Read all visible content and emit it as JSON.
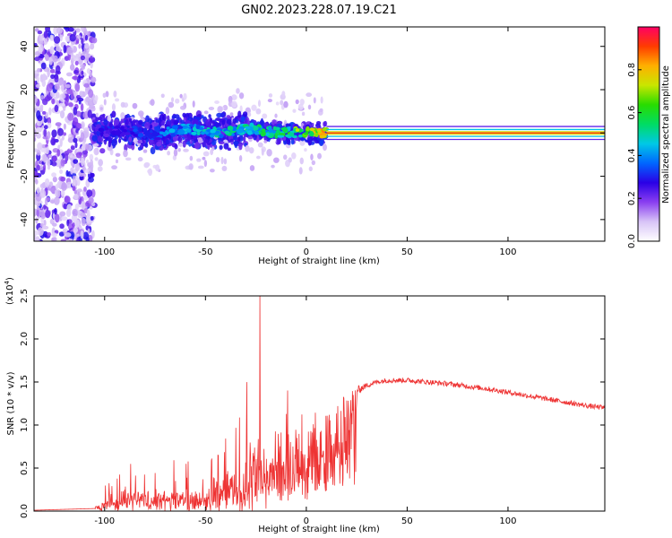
{
  "title": "GN02.2023.228.07.19.C21",
  "chart_data": [
    {
      "type": "heatmap",
      "xlabel": "Height of straight line (km)",
      "ylabel": "Frequency (Hz)",
      "xlim": [
        -135,
        148
      ],
      "ylim": [
        -50,
        49
      ],
      "xticks": [
        -100,
        -50,
        0,
        50,
        100
      ],
      "yticks": [
        -40,
        -20,
        0,
        20,
        40
      ],
      "colorbar": {
        "label": "Normalized spectral amplitude",
        "range": [
          0.0,
          1.0
        ],
        "ticks": [
          "0.0",
          "0.2",
          "0.4",
          "0.6",
          "0.8"
        ],
        "colormap": [
          "#ffffff",
          "#d8c4f7",
          "#8a3ff0",
          "#2a00e6",
          "#0066ff",
          "#00c8e6",
          "#00dc64",
          "#28dc00",
          "#c8e600",
          "#ffb000",
          "#ff3c00",
          "#ff0064"
        ]
      },
      "ridge": {
        "x": [
          -105,
          -90,
          -75,
          -60,
          -45,
          -30,
          -20,
          -10,
          0,
          10,
          148
        ],
        "freq": [
          0,
          1,
          -1,
          2,
          0,
          2,
          1,
          0,
          0,
          0,
          0
        ],
        "amplitude": [
          0.3,
          0.3,
          0.35,
          0.45,
          0.5,
          0.5,
          0.55,
          0.6,
          0.7,
          0.85,
          0.9
        ]
      },
      "noise_region_x": [
        -135,
        -105
      ],
      "scatter_region_x": [
        -105,
        10
      ],
      "grid": false
    },
    {
      "type": "line",
      "xlabel": "Height of straight line (km)",
      "ylabel": "SNR (10 * v/v)",
      "y_scale_label": "(x10",
      "y_scale_exponent": "4",
      "y_scale_close": ")",
      "xlim": [
        -135,
        148
      ],
      "ylim": [
        0,
        2.5
      ],
      "xticks": [
        -100,
        -50,
        0,
        50,
        100
      ],
      "yticks": [
        "0.0",
        "0.5",
        "1.0",
        "1.5",
        "2.0",
        "2.5"
      ],
      "color": "#ee3333",
      "series": [
        {
          "x": [
            -135,
            -120,
            -105,
            -100,
            -90,
            -80,
            -70,
            -60,
            -50,
            -40,
            -30,
            -26,
            -22,
            -18,
            -12,
            -5,
            0,
            5,
            10,
            15,
            20,
            25,
            30,
            35,
            40,
            50,
            60,
            70,
            80,
            90,
            100,
            110,
            120,
            130,
            140,
            148
          ],
          "y": [
            0.01,
            0.02,
            0.03,
            0.1,
            0.2,
            0.2,
            0.2,
            0.2,
            0.2,
            0.3,
            0.4,
            0.7,
            0.6,
            0.7,
            0.8,
            0.85,
            0.9,
            0.95,
            1.05,
            1.18,
            1.3,
            1.4,
            1.46,
            1.5,
            1.52,
            1.52,
            1.5,
            1.48,
            1.45,
            1.42,
            1.38,
            1.34,
            1.3,
            1.26,
            1.22,
            1.2
          ],
          "noise_amplitude": [
            0,
            0,
            0,
            0.15,
            0.18,
            0.2,
            0.2,
            0.25,
            0.3,
            0.4,
            0.6,
            0.8,
            0.6,
            0.6,
            0.4,
            0.3,
            0.25,
            0.2,
            0.15,
            0.12,
            0.08,
            0.05,
            0.03,
            0.03,
            0.03,
            0.03,
            0.03,
            0.03,
            0.03,
            0.03,
            0.03,
            0.03,
            0.03,
            0.03,
            0.03,
            0.03
          ]
        }
      ],
      "peak": {
        "x": -23,
        "y": 2.5
      },
      "grid": false
    }
  ]
}
